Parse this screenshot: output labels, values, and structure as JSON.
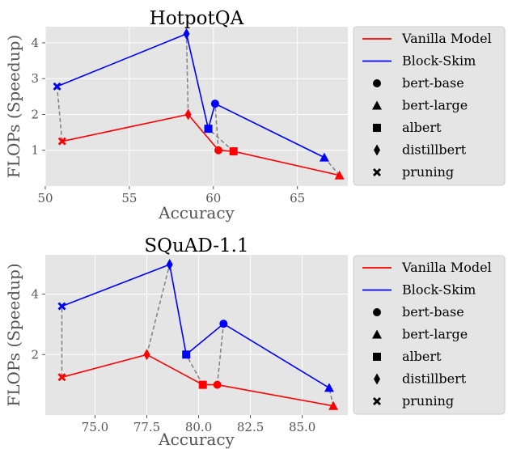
{
  "chart_data": [
    {
      "type": "scatter",
      "title": "HotpotQA",
      "xlabel": "Accuracy",
      "ylabel": "FLOPs (Speedup)",
      "xlim": [
        50.0,
        68.0
      ],
      "ylim": [
        0,
        4.45
      ],
      "xticks": [
        50,
        55,
        60,
        65
      ],
      "xtick_labels": [
        "50",
        "55",
        "60",
        "65"
      ],
      "yticks": [
        1,
        2,
        3,
        4
      ],
      "ytick_labels": [
        "1",
        "2",
        "3",
        "4"
      ],
      "grid": true,
      "legend_position": "right",
      "models": [
        "bert-base",
        "bert-large",
        "albert",
        "distillbert",
        "pruning"
      ],
      "series": [
        {
          "name": "Vanilla Model",
          "color": "#ff0000",
          "order": [
            "pruning",
            "distillbert",
            "bert-base",
            "albert",
            "bert-large"
          ],
          "points": [
            {
              "model": "pruning",
              "x": 51.0,
              "y": 1.25
            },
            {
              "model": "distillbert",
              "x": 58.5,
              "y": 2.0
            },
            {
              "model": "bert-base",
              "x": 60.3,
              "y": 1.0
            },
            {
              "model": "albert",
              "x": 61.2,
              "y": 0.97
            },
            {
              "model": "bert-large",
              "x": 67.5,
              "y": 0.3
            }
          ]
        },
        {
          "name": "Block-Skim",
          "color": "#0000ff",
          "order": [
            "pruning",
            "distillbert",
            "albert",
            "bert-base",
            "bert-large"
          ],
          "points": [
            {
              "model": "pruning",
              "x": 50.7,
              "y": 2.78
            },
            {
              "model": "distillbert",
              "x": 58.4,
              "y": 4.25
            },
            {
              "model": "albert",
              "x": 59.7,
              "y": 1.6
            },
            {
              "model": "bert-base",
              "x": 60.1,
              "y": 2.3
            },
            {
              "model": "bert-large",
              "x": 66.6,
              "y": 0.8
            }
          ]
        }
      ],
      "connector_color": "#808080"
    },
    {
      "type": "scatter",
      "title": "SQuAD-1.1",
      "xlabel": "Accuracy",
      "ylabel": "FLOPs (Speedup)",
      "xlim": [
        72.6,
        87.2
      ],
      "ylim": [
        0,
        5.3
      ],
      "xticks": [
        75.0,
        77.5,
        80.0,
        82.5,
        85.0
      ],
      "xtick_labels": [
        "75.0",
        "77.5",
        "80.0",
        "82.5",
        "85.0"
      ],
      "yticks": [
        2,
        4
      ],
      "ytick_labels": [
        "2",
        "4"
      ],
      "grid": true,
      "legend_position": "right",
      "models": [
        "bert-base",
        "bert-large",
        "albert",
        "distillbert",
        "pruning"
      ],
      "series": [
        {
          "name": "Vanilla Model",
          "color": "#ff0000",
          "order": [
            "pruning",
            "distillbert",
            "albert",
            "bert-base",
            "bert-large"
          ],
          "points": [
            {
              "model": "pruning",
              "x": 73.4,
              "y": 1.25
            },
            {
              "model": "distillbert",
              "x": 77.5,
              "y": 2.0
            },
            {
              "model": "albert",
              "x": 80.2,
              "y": 1.0
            },
            {
              "model": "bert-base",
              "x": 80.9,
              "y": 1.0
            },
            {
              "model": "bert-large",
              "x": 86.5,
              "y": 0.3
            }
          ]
        },
        {
          "name": "Block-Skim",
          "color": "#0000ff",
          "order": [
            "pruning",
            "distillbert",
            "albert",
            "bert-base",
            "bert-large"
          ],
          "points": [
            {
              "model": "pruning",
              "x": 73.4,
              "y": 3.6
            },
            {
              "model": "distillbert",
              "x": 78.6,
              "y": 4.98
            },
            {
              "model": "albert",
              "x": 79.4,
              "y": 2.0
            },
            {
              "model": "bert-base",
              "x": 81.2,
              "y": 3.02
            },
            {
              "model": "bert-large",
              "x": 86.3,
              "y": 0.9
            }
          ]
        }
      ],
      "connector_color": "#808080"
    }
  ],
  "legend": {
    "lines": [
      {
        "label": "Vanilla Model",
        "color": "#ff0000"
      },
      {
        "label": "Block-Skim",
        "color": "#0000ff"
      }
    ],
    "markers": [
      {
        "label": "bert-base",
        "marker": "circle"
      },
      {
        "label": "bert-large",
        "marker": "triangle"
      },
      {
        "label": "albert",
        "marker": "square"
      },
      {
        "label": "distillbert",
        "marker": "thin-diamond"
      },
      {
        "label": "pruning",
        "marker": "x-cross"
      }
    ]
  },
  "style": {
    "plot_background": "#e5e5e5",
    "grid_color": "#ffffff",
    "legend_background": "#e5e5e5",
    "legend_border": "#cccccc"
  }
}
